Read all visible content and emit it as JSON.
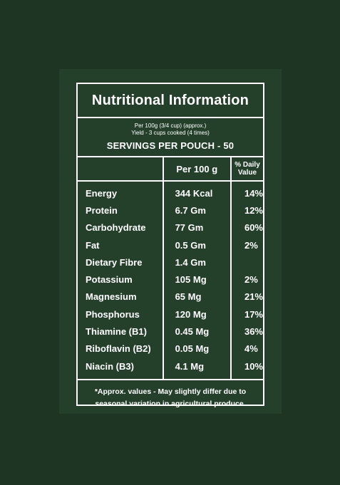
{
  "title": "Nutritional Information",
  "meta": {
    "per": "Per 100g (3/4 cup) (approx.)",
    "yield": "Yield - 3 cups cooked (4 times)",
    "servings": "SERVINGS PER POUCH - 50"
  },
  "columns": {
    "per100": "Per 100 g",
    "daily": "% Daily Value"
  },
  "rows": [
    {
      "name": "Energy",
      "amount": "344 Kcal",
      "dv": "14%"
    },
    {
      "name": "Protein",
      "amount": "6.7 Gm",
      "dv": "12%"
    },
    {
      "name": "Carbohydrate",
      "amount": "77 Gm",
      "dv": "60%"
    },
    {
      "name": "Fat",
      "amount": "0.5 Gm",
      "dv": "2%"
    },
    {
      "name": "Dietary Fibre",
      "amount": "1.4 Gm",
      "dv": ""
    },
    {
      "name": "Potassium",
      "amount": "105 Mg",
      "dv": "2%"
    },
    {
      "name": "Magnesium",
      "amount": "65 Mg",
      "dv": "21%"
    },
    {
      "name": "Phosphorus",
      "amount": "120 Mg",
      "dv": "17%"
    },
    {
      "name": "Thiamine (B1)",
      "amount": "0.45 Mg",
      "dv": "36%"
    },
    {
      "name": "Riboflavin (B2)",
      "amount": "0.05 Mg",
      "dv": "4%"
    },
    {
      "name": "Niacin (B3)",
      "amount": "4.1 Mg",
      "dv": "10%"
    }
  ],
  "footnote": {
    "line1": "*Approx. values - May slightly differ due to",
    "line2": "seasonal variation in agricultural produce."
  },
  "colors": {
    "background": "#1f3523",
    "panel": "#24402b",
    "text": "#ffffff"
  }
}
